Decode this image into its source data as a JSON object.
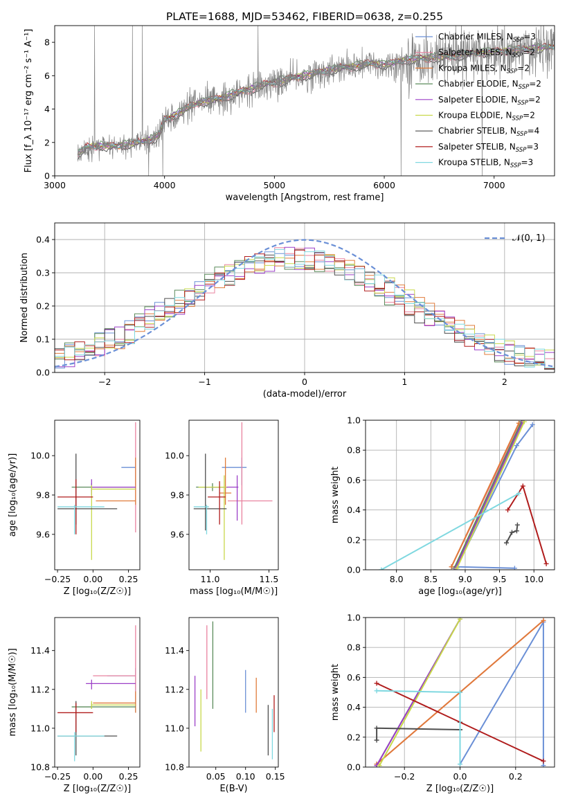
{
  "figure_title": "PLATE=1688, MJD=53462, FIBERID=0638, z=0.255",
  "colors": {
    "spectrum": "#808080",
    "Chabrier MILES": "#6a8fd6",
    "Salpeter MILES": "#e9829f",
    "Kroupa MILES": "#e07b3a",
    "Chabrier ELODIE": "#5a8a5a",
    "Salpeter ELODIE": "#9b3fc7",
    "Kroupa ELODIE": "#c8d84a",
    "Chabrier STELIB": "#4d4d4d",
    "Salpeter STELIB": "#b01c1c",
    "Kroupa STELIB": "#7fd8e0",
    "normal": "#6a8fd6",
    "grid": "#b0b0b0"
  },
  "chart_data": [
    {
      "id": "spectrum",
      "type": "line",
      "title": "PLATE=1688, MJD=53462, FIBERID=0638, z=0.255",
      "xlabel": "wavelength [Angstrom, rest frame]",
      "ylabel": "Flux [f_λ 10⁻¹⁷ erg cm⁻² s⁻¹ A⁻¹]",
      "xlim": [
        3000,
        7550
      ],
      "ylim": [
        0,
        9
      ],
      "xticks": [
        "3000",
        "4000",
        "5000",
        "6000",
        "7000"
      ],
      "yticks": [
        "0",
        "2",
        "4",
        "6",
        "8"
      ],
      "grid": false,
      "legend_position": "upper-right",
      "legend": [
        {
          "model": "Chabrier MILES",
          "label": "Chabrier MILES, N",
          "sub": "SSP",
          "eq": "=3"
        },
        {
          "model": "Salpeter MILES",
          "label": "Salpeter MILES, N",
          "sub": "SSP",
          "eq": "=2"
        },
        {
          "model": "Kroupa MILES",
          "label": "Kroupa MILES, N",
          "sub": "SSP",
          "eq": "=2"
        },
        {
          "model": "Chabrier ELODIE",
          "label": "Chabrier ELODIE, N",
          "sub": "SSP",
          "eq": "=2"
        },
        {
          "model": "Salpeter ELODIE",
          "label": "Salpeter ELODIE, N",
          "sub": "SSP",
          "eq": "=2"
        },
        {
          "model": "Kroupa ELODIE",
          "label": "Kroupa ELODIE, N",
          "sub": "SSP",
          "eq": "=2"
        },
        {
          "model": "Chabrier STELIB",
          "label": "Chabrier STELIB, N",
          "sub": "SSP",
          "eq": "=4"
        },
        {
          "model": "Salpeter STELIB",
          "label": "Salpeter STELIB, N",
          "sub": "SSP",
          "eq": "=3"
        },
        {
          "model": "Kroupa STELIB",
          "label": "Kroupa STELIB, N",
          "sub": "SSP",
          "eq": "=3"
        }
      ],
      "continuum": {
        "x": [
          3200,
          3300,
          3400,
          3500,
          3600,
          3700,
          3800,
          3900,
          3950,
          4000,
          4100,
          4200,
          4300,
          4500,
          4700,
          4900,
          5100,
          5300,
          5500,
          5700,
          5900,
          6000,
          6200,
          6400,
          6600,
          6800,
          7000,
          7200,
          7400,
          7550
        ],
        "y": [
          1.2,
          1.7,
          1.75,
          1.7,
          1.75,
          1.9,
          2.0,
          2.2,
          2.4,
          3.3,
          3.6,
          4.0,
          4.3,
          4.6,
          5.0,
          5.4,
          5.7,
          6.0,
          6.3,
          6.5,
          6.7,
          6.6,
          6.9,
          7.0,
          7.1,
          7.3,
          7.4,
          7.5,
          7.6,
          7.7
        ]
      }
    },
    {
      "id": "residuals",
      "type": "histogram",
      "xlabel": "(data-model)/error",
      "ylabel": "Normed distribution",
      "xlim": [
        -2.5,
        2.5
      ],
      "ylim": [
        0,
        0.45
      ],
      "xticks": [
        "−2",
        "−1",
        "0",
        "1",
        "2"
      ],
      "yticks": [
        "0.0",
        "0.1",
        "0.2",
        "0.3",
        "0.4"
      ],
      "grid": true,
      "legend_position": "upper-right",
      "reference_label": "𝒩(0, 1)"
    },
    {
      "id": "age_vs_Z",
      "type": "errorbar",
      "xlabel": "Z [log₁₀(Z/Z☉)]",
      "ylabel": "age  [log₁₀(age/yr)]",
      "xlim": [
        -0.27,
        0.33
      ],
      "ylim": [
        9.42,
        10.18
      ],
      "xticks": [
        "−0.25",
        "0.00",
        "0.25"
      ],
      "yticks": [
        "9.6",
        "9.8",
        "10.0"
      ],
      "points": [
        {
          "model": "Chabrier MILES",
          "x": 0.3,
          "y": 9.94,
          "xlo": 0.2,
          "xhi": 0.3,
          "ylo": 9.85,
          "yhi": 9.99
        },
        {
          "model": "Salpeter MILES",
          "x": 0.3,
          "y": 9.8,
          "xlo": 0.3,
          "xhi": 0.3,
          "ylo": 9.61,
          "yhi": 10.17
        },
        {
          "model": "Kroupa MILES",
          "x": 0.3,
          "y": 9.77,
          "xlo": 0.02,
          "xhi": 0.3,
          "ylo": 9.75,
          "yhi": 9.99
        },
        {
          "model": "Chabrier ELODIE",
          "x": -0.01,
          "y": 9.84,
          "xlo": -0.15,
          "xhi": 0.3,
          "ylo": 9.82,
          "yhi": 9.86
        },
        {
          "model": "Salpeter ELODIE",
          "x": -0.01,
          "y": 9.84,
          "xlo": -0.01,
          "xhi": 0.3,
          "ylo": 9.8,
          "yhi": 9.88
        },
        {
          "model": "Kroupa ELODIE",
          "x": -0.01,
          "y": 9.83,
          "xlo": -0.01,
          "xhi": 0.3,
          "ylo": 9.47,
          "yhi": 9.85
        },
        {
          "model": "Chabrier STELIB",
          "x": -0.12,
          "y": 9.73,
          "xlo": -0.25,
          "xhi": 0.17,
          "ylo": 9.65,
          "yhi": 10.01
        },
        {
          "model": "Salpeter STELIB",
          "x": -0.12,
          "y": 9.79,
          "xlo": -0.25,
          "xhi": 0.0,
          "ylo": 9.6,
          "yhi": 9.88
        },
        {
          "model": "Kroupa STELIB",
          "x": -0.13,
          "y": 9.74,
          "xlo": -0.25,
          "xhi": 0.08,
          "ylo": 9.6,
          "yhi": 9.75
        }
      ]
    },
    {
      "id": "age_vs_mass",
      "type": "errorbar",
      "xlabel": "mass [log₁₀(M/M☉)]",
      "ylabel": "",
      "xlim": [
        10.82,
        11.58
      ],
      "ylim": [
        9.42,
        10.18
      ],
      "xticks": [
        "11.0",
        "11.5"
      ],
      "yticks": [
        "9.6",
        "9.8",
        "10.0"
      ],
      "points": [
        {
          "model": "Chabrier MILES",
          "x": 11.27,
          "y": 9.94,
          "xlo": 11.1,
          "xhi": 11.31,
          "ylo": 9.85,
          "yhi": 9.99
        },
        {
          "model": "Salpeter MILES",
          "x": 11.27,
          "y": 9.77,
          "xlo": 11.15,
          "xhi": 11.53,
          "ylo": 9.65,
          "yhi": 10.17
        },
        {
          "model": "Kroupa MILES",
          "x": 11.13,
          "y": 9.81,
          "xlo": 11.08,
          "xhi": 11.18,
          "ylo": 9.75,
          "yhi": 9.99
        },
        {
          "model": "Chabrier ELODIE",
          "x": 11.02,
          "y": 9.84,
          "xlo": 10.88,
          "xhi": 11.15,
          "ylo": 9.82,
          "yhi": 9.86
        },
        {
          "model": "Salpeter ELODIE",
          "x": 11.23,
          "y": 9.84,
          "xlo": 10.95,
          "xhi": 11.24,
          "ylo": 9.67,
          "yhi": 9.9
        },
        {
          "model": "Kroupa ELODIE",
          "x": 11.12,
          "y": 9.84,
          "xlo": 10.9,
          "xhi": 11.14,
          "ylo": 9.47,
          "yhi": 9.9
        },
        {
          "model": "Chabrier STELIB",
          "x": 10.96,
          "y": 9.73,
          "xlo": 10.86,
          "xhi": 11.14,
          "ylo": 9.62,
          "yhi": 10.01
        },
        {
          "model": "Salpeter STELIB",
          "x": 11.08,
          "y": 9.79,
          "xlo": 10.98,
          "xhi": 11.13,
          "ylo": 9.65,
          "yhi": 9.87
        },
        {
          "model": "Kroupa STELIB",
          "x": 10.97,
          "y": 9.74,
          "xlo": 10.86,
          "xhi": 10.99,
          "ylo": 9.6,
          "yhi": 9.75
        }
      ]
    },
    {
      "id": "weight_vs_age",
      "type": "line",
      "xlabel": "age  [log₁₀(age/yr)]",
      "ylabel": "mass weight",
      "xlim": [
        7.55,
        10.3
      ],
      "ylim": [
        0,
        1
      ],
      "xticks": [
        "8.0",
        "8.5",
        "9.0",
        "9.5",
        "10.0"
      ],
      "yticks": [
        "0.0",
        "0.2",
        "0.4",
        "0.6",
        "0.8",
        "1.0"
      ],
      "grid": true,
      "series": [
        {
          "model": "Chabrier MILES",
          "x": [
            9.72,
            8.88,
            9.75,
            9.98
          ],
          "y": [
            0.01,
            0.02,
            0.83,
            0.97
          ]
        },
        {
          "model": "Salpeter MILES",
          "x": [
            8.8,
            9.8
          ],
          "y": [
            0.02,
            0.98
          ]
        },
        {
          "model": "Kroupa MILES",
          "x": [
            8.8,
            9.78
          ],
          "y": [
            0.02,
            0.98
          ]
        },
        {
          "model": "Chabrier ELODIE",
          "x": [
            8.84,
            9.82
          ],
          "y": [
            0.01,
            0.99
          ]
        },
        {
          "model": "Salpeter ELODIE",
          "x": [
            8.86,
            9.84
          ],
          "y": [
            0.01,
            0.99
          ]
        },
        {
          "model": "Kroupa ELODIE",
          "x": [
            8.88,
            9.86
          ],
          "y": [
            0.01,
            0.99
          ]
        },
        {
          "model": "Chabrier STELIB",
          "x": [
            9.6,
            9.68,
            9.75,
            9.76
          ],
          "y": [
            0.18,
            0.25,
            0.26,
            0.3
          ]
        },
        {
          "model": "Salpeter STELIB",
          "x": [
            9.62,
            9.84,
            10.18
          ],
          "y": [
            0.4,
            0.56,
            0.04
          ]
        },
        {
          "model": "Kroupa STELIB",
          "x": [
            7.78,
            9.78
          ],
          "y": [
            0.0,
            0.51
          ]
        }
      ]
    },
    {
      "id": "mass_vs_Z",
      "type": "errorbar",
      "xlabel": "Z [log₁₀(Z/Z☉)]",
      "ylabel": "mass [log₁₀(M/M☉)]",
      "xlim": [
        -0.27,
        0.33
      ],
      "ylim": [
        10.8,
        11.57
      ],
      "xticks": [
        "−0.25",
        "0.00",
        "0.25"
      ],
      "yticks": [
        "10.8",
        "11.0",
        "11.2",
        "11.4"
      ],
      "points": [
        {
          "model": "Chabrier MILES",
          "x": 0.3,
          "y": 11.27,
          "xlo": 0.1,
          "xhi": 0.3,
          "ylo": 11.08,
          "yhi": 11.31
        },
        {
          "model": "Salpeter MILES",
          "x": 0.3,
          "y": 11.27,
          "xlo": 0.0,
          "xhi": 0.3,
          "ylo": 11.15,
          "yhi": 11.53
        },
        {
          "model": "Kroupa MILES",
          "x": 0.3,
          "y": 11.13,
          "xlo": 0.0,
          "xhi": 0.3,
          "ylo": 11.08,
          "yhi": 11.19
        },
        {
          "model": "Chabrier ELODIE",
          "x": -0.01,
          "y": 11.11,
          "xlo": -0.15,
          "xhi": 0.3,
          "ylo": 11.1,
          "yhi": 11.13
        },
        {
          "model": "Salpeter ELODIE",
          "x": -0.01,
          "y": 11.23,
          "xlo": -0.05,
          "xhi": 0.3,
          "ylo": 11.2,
          "yhi": 11.25
        },
        {
          "model": "Kroupa ELODIE",
          "x": -0.01,
          "y": 11.12,
          "xlo": -0.01,
          "xhi": 0.3,
          "ylo": 11.1,
          "yhi": 11.14
        },
        {
          "model": "Chabrier STELIB",
          "x": -0.12,
          "y": 10.96,
          "xlo": -0.25,
          "xhi": 0.17,
          "ylo": 10.86,
          "yhi": 11.14
        },
        {
          "model": "Salpeter STELIB",
          "x": -0.12,
          "y": 11.08,
          "xlo": -0.25,
          "xhi": 0.0,
          "ylo": 10.98,
          "yhi": 11.13
        },
        {
          "model": "Kroupa STELIB",
          "x": -0.13,
          "y": 10.96,
          "xlo": -0.25,
          "xhi": 0.08,
          "ylo": 10.83,
          "yhi": 10.98
        }
      ]
    },
    {
      "id": "mass_vs_ebv",
      "type": "errorbar",
      "xlabel": "E(B-V)",
      "ylabel": "",
      "xlim": [
        0.005,
        0.155
      ],
      "ylim": [
        10.8,
        11.57
      ],
      "xticks": [
        "0.05",
        "0.10",
        "0.15"
      ],
      "yticks": [
        "10.8",
        "11.0",
        "11.2",
        "11.4"
      ],
      "points": [
        {
          "model": "Chabrier MILES",
          "x": 0.1,
          "y": 11.2,
          "ylo": 11.08,
          "yhi": 11.3
        },
        {
          "model": "Salpeter MILES",
          "x": 0.035,
          "y": 11.32,
          "ylo": 11.15,
          "yhi": 11.53
        },
        {
          "model": "Kroupa MILES",
          "x": 0.118,
          "y": 11.16,
          "ylo": 11.08,
          "yhi": 11.26
        },
        {
          "model": "Chabrier ELODIE",
          "x": 0.045,
          "y": 11.3,
          "ylo": 11.1,
          "yhi": 11.55
        },
        {
          "model": "Salpeter ELODIE",
          "x": 0.015,
          "y": 11.15,
          "ylo": 11.01,
          "yhi": 11.27
        },
        {
          "model": "Kroupa ELODIE",
          "x": 0.025,
          "y": 11.05,
          "ylo": 10.88,
          "yhi": 11.2
        },
        {
          "model": "Chabrier STELIB",
          "x": 0.138,
          "y": 10.96,
          "ylo": 10.86,
          "yhi": 11.12
        },
        {
          "model": "Salpeter STELIB",
          "x": 0.148,
          "y": 11.08,
          "ylo": 10.98,
          "yhi": 11.17
        },
        {
          "model": "Kroupa STELIB",
          "x": 0.145,
          "y": 10.96,
          "ylo": 10.84,
          "yhi": 11.1
        }
      ]
    },
    {
      "id": "weight_vs_Z",
      "type": "line",
      "xlabel": "Z [log₁₀(Z/Z☉)]",
      "ylabel": "mass weight",
      "xlim": [
        -0.34,
        0.34
      ],
      "ylim": [
        0,
        1
      ],
      "xticks": [
        "−0.2",
        "0.0",
        "0.2"
      ],
      "yticks": [
        "0.0",
        "0.2",
        "0.4",
        "0.6",
        "0.8",
        "1.0"
      ],
      "grid": true,
      "series": [
        {
          "model": "Chabrier MILES",
          "x": [
            0.0,
            0.3,
            0.3
          ],
          "y": [
            0.02,
            0.97,
            0.01
          ]
        },
        {
          "model": "Salpeter MILES",
          "x": [
            -0.3,
            0.0,
            0.3
          ],
          "y": [
            0.02,
            0.5,
            0.98
          ]
        },
        {
          "model": "Kroupa MILES",
          "x": [
            -0.3,
            0.0,
            0.3
          ],
          "y": [
            0.02,
            0.5,
            0.98
          ]
        },
        {
          "model": "Chabrier ELODIE",
          "x": [
            -0.3,
            0.0
          ],
          "y": [
            0.01,
            0.99
          ]
        },
        {
          "model": "Salpeter ELODIE",
          "x": [
            -0.3,
            0.0
          ],
          "y": [
            0.01,
            0.99
          ]
        },
        {
          "model": "Kroupa ELODIE",
          "x": [
            -0.29,
            0.0
          ],
          "y": [
            0.01,
            0.99
          ]
        },
        {
          "model": "Chabrier STELIB",
          "x": [
            -0.3,
            -0.3,
            0.0,
            0.0,
            0.0
          ],
          "y": [
            0.18,
            0.26,
            0.25,
            0.3,
            0.25
          ]
        },
        {
          "model": "Salpeter STELIB",
          "x": [
            -0.3,
            0.3
          ],
          "y": [
            0.56,
            0.04
          ]
        },
        {
          "model": "Kroupa STELIB",
          "x": [
            -0.3,
            0.0,
            0.0
          ],
          "y": [
            0.51,
            0.5,
            0.02
          ]
        }
      ]
    }
  ]
}
